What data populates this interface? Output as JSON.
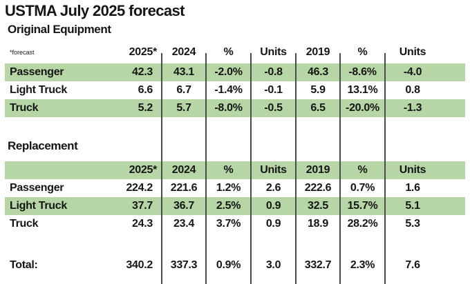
{
  "title": "USTMA July 2025 forecast",
  "footnote": "*forecast",
  "colors": {
    "highlight_green": "#b7d6a6",
    "divider_gray": "#4a4a4a",
    "text": "#151515",
    "background": "#ffffff"
  },
  "chart_data": [
    {
      "type": "table",
      "title": "Original Equipment",
      "columns": [
        "",
        "2025*",
        "2024",
        "%",
        "Units",
        "2019",
        "%",
        "Units"
      ],
      "rows": [
        [
          "Passenger",
          "42.3",
          "43.1",
          "-2.0%",
          "-0.8",
          "46.3",
          "-8.6%",
          "-4.0"
        ],
        [
          "Light Truck",
          "6.6",
          "6.7",
          "-1.4%",
          "-0.1",
          "5.9",
          "13.1%",
          "0.8"
        ],
        [
          "Truck",
          "5.2",
          "5.7",
          "-8.0%",
          "-0.5",
          "6.5",
          "-20.0%",
          "-1.3"
        ]
      ],
      "row_highlights": [
        true,
        false,
        true
      ],
      "header_highlight": false
    },
    {
      "type": "table",
      "title": "Replacement",
      "columns": [
        "",
        "2025*",
        "2024",
        "%",
        "Units",
        "2019",
        "%",
        "Units"
      ],
      "rows": [
        [
          "Passenger",
          "224.2",
          "221.6",
          "1.2%",
          "2.6",
          "222.6",
          "0.7%",
          "1.6"
        ],
        [
          "Light Truck",
          "37.7",
          "36.7",
          "2.5%",
          "0.9",
          "32.5",
          "15.7%",
          "5.1"
        ],
        [
          "Truck",
          "24.3",
          "23.4",
          "3.7%",
          "0.9",
          "18.9",
          "28.2%",
          "5.3"
        ]
      ],
      "row_highlights": [
        false,
        true,
        false
      ],
      "header_highlight": true
    }
  ],
  "grand_total": [
    "Total:",
    "340.2",
    "337.3",
    "0.9%",
    "3.0",
    "332.7",
    "2.3%",
    "7.6"
  ]
}
